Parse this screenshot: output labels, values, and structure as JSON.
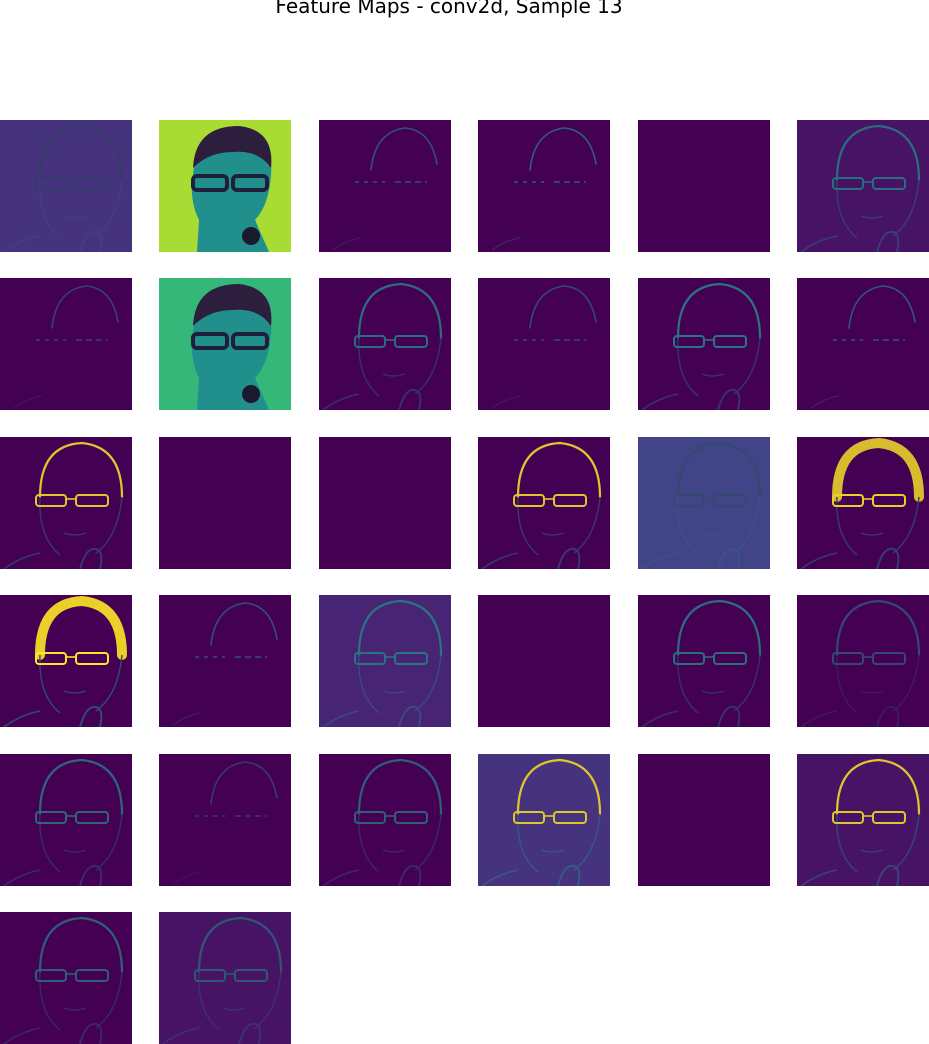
{
  "figure": {
    "title": "Feature Maps - conv2d, Sample 13"
  },
  "colormap": "viridis",
  "colors": {
    "background": "#ffffff",
    "viridis_dark": "#440154",
    "viridis_blue": "#3b528b",
    "viridis_teal": "#21918c",
    "viridis_green": "#5ec962",
    "viridis_yellow": "#fde725"
  },
  "grid": {
    "rows": 6,
    "cols": 6,
    "map_count": 32
  },
  "maps": [
    {
      "index": 1,
      "kind": "outline",
      "level": 0.2,
      "background": "#46337e"
    },
    {
      "index": 2,
      "kind": "bright",
      "level": 1.0,
      "background": "#a8db34"
    },
    {
      "index": 3,
      "kind": "sparse",
      "level": 0.35,
      "background": "#440154"
    },
    {
      "index": 4,
      "kind": "sparse",
      "level": 0.45,
      "background": "#440154"
    },
    {
      "index": 5,
      "kind": "blank",
      "level": 0.0,
      "background": "#440154"
    },
    {
      "index": 6,
      "kind": "outline",
      "level": 0.55,
      "background": "#471365"
    },
    {
      "index": 7,
      "kind": "sparse",
      "level": 0.25,
      "background": "#440154"
    },
    {
      "index": 8,
      "kind": "bright",
      "level": 0.85,
      "background": "#35b779"
    },
    {
      "index": 9,
      "kind": "outline",
      "level": 0.55,
      "background": "#440154"
    },
    {
      "index": 10,
      "kind": "sparse",
      "level": 0.3,
      "background": "#440154"
    },
    {
      "index": 11,
      "kind": "outline",
      "level": 0.6,
      "background": "#440154"
    },
    {
      "index": 12,
      "kind": "sparse",
      "level": 0.4,
      "background": "#440154"
    },
    {
      "index": 13,
      "kind": "outline",
      "level": 0.65,
      "background": "#440154"
    },
    {
      "index": 14,
      "kind": "blank",
      "level": 0.0,
      "background": "#440154"
    },
    {
      "index": 15,
      "kind": "blank",
      "level": 0.0,
      "background": "#440154"
    },
    {
      "index": 16,
      "kind": "outline",
      "level": 0.65,
      "background": "#440154"
    },
    {
      "index": 17,
      "kind": "outline",
      "level": 0.3,
      "background": "#414487"
    },
    {
      "index": 18,
      "kind": "crown",
      "level": 0.7,
      "background": "#440154"
    },
    {
      "index": 19,
      "kind": "crown",
      "level": 0.85,
      "background": "#440154"
    },
    {
      "index": 20,
      "kind": "sparse",
      "level": 0.35,
      "background": "#440154"
    },
    {
      "index": 21,
      "kind": "outline",
      "level": 0.6,
      "background": "#482475"
    },
    {
      "index": 22,
      "kind": "blank",
      "level": 0.0,
      "background": "#440154"
    },
    {
      "index": 23,
      "kind": "outline",
      "level": 0.55,
      "background": "#440154"
    },
    {
      "index": 24,
      "kind": "outline",
      "level": 0.3,
      "background": "#440154"
    },
    {
      "index": 25,
      "kind": "outline",
      "level": 0.5,
      "background": "#440154"
    },
    {
      "index": 26,
      "kind": "sparse",
      "level": 0.2,
      "background": "#440154"
    },
    {
      "index": 27,
      "kind": "outline",
      "level": 0.45,
      "background": "#440154"
    },
    {
      "index": 28,
      "kind": "outline",
      "level": 0.65,
      "background": "#46337e"
    },
    {
      "index": 29,
      "kind": "blank",
      "level": 0.0,
      "background": "#440154"
    },
    {
      "index": 30,
      "kind": "outline",
      "level": 0.65,
      "background": "#471365"
    },
    {
      "index": 31,
      "kind": "outline",
      "level": 0.45,
      "background": "#440154"
    },
    {
      "index": 32,
      "kind": "outline",
      "level": 0.4,
      "background": "#471365"
    }
  ]
}
